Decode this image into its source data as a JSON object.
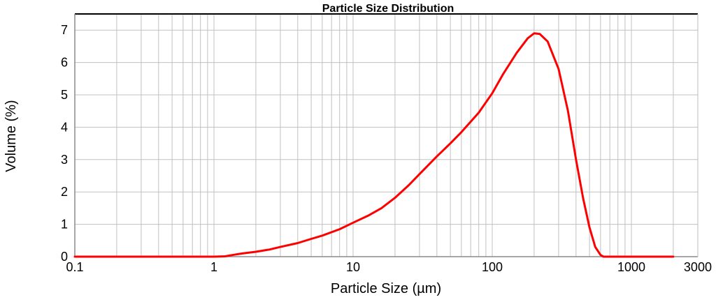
{
  "chart_data": {
    "type": "line",
    "title": "Particle Size Distribution",
    "xlabel": "Particle Size (µm)",
    "ylabel": "Volume (%)",
    "xscale": "log",
    "xlim": [
      0.1,
      3000
    ],
    "ylim": [
      0,
      7.5
    ],
    "x_ticks": [
      "0.1",
      "1",
      "10",
      "100",
      "1000",
      "3000"
    ],
    "y_ticks": [
      "0",
      "1",
      "2",
      "3",
      "4",
      "5",
      "6",
      "7"
    ],
    "grid": true,
    "series": [
      {
        "color": "#ff0000",
        "points": [
          [
            0.1,
            0
          ],
          [
            0.5,
            0
          ],
          [
            1.0,
            0
          ],
          [
            1.2,
            0.01
          ],
          [
            1.4,
            0.06
          ],
          [
            1.6,
            0.1
          ],
          [
            2.0,
            0.15
          ],
          [
            2.5,
            0.22
          ],
          [
            3.0,
            0.3
          ],
          [
            4.0,
            0.42
          ],
          [
            5.0,
            0.55
          ],
          [
            6.0,
            0.65
          ],
          [
            8.0,
            0.85
          ],
          [
            10.0,
            1.05
          ],
          [
            13.0,
            1.28
          ],
          [
            16.0,
            1.5
          ],
          [
            20.0,
            1.82
          ],
          [
            25.0,
            2.2
          ],
          [
            30.0,
            2.55
          ],
          [
            40.0,
            3.1
          ],
          [
            50.0,
            3.5
          ],
          [
            60.0,
            3.85
          ],
          [
            80.0,
            4.45
          ],
          [
            100.0,
            5.05
          ],
          [
            120.0,
            5.65
          ],
          [
            150.0,
            6.3
          ],
          [
            180.0,
            6.75
          ],
          [
            200.0,
            6.9
          ],
          [
            220.0,
            6.88
          ],
          [
            250.0,
            6.65
          ],
          [
            300.0,
            5.8
          ],
          [
            350.0,
            4.5
          ],
          [
            400.0,
            3.0
          ],
          [
            450.0,
            1.8
          ],
          [
            500.0,
            0.9
          ],
          [
            550.0,
            0.3
          ],
          [
            600.0,
            0.05
          ],
          [
            630.0,
            0
          ],
          [
            800.0,
            0
          ],
          [
            1200.0,
            0
          ],
          [
            2000.0,
            0
          ]
        ]
      }
    ]
  }
}
